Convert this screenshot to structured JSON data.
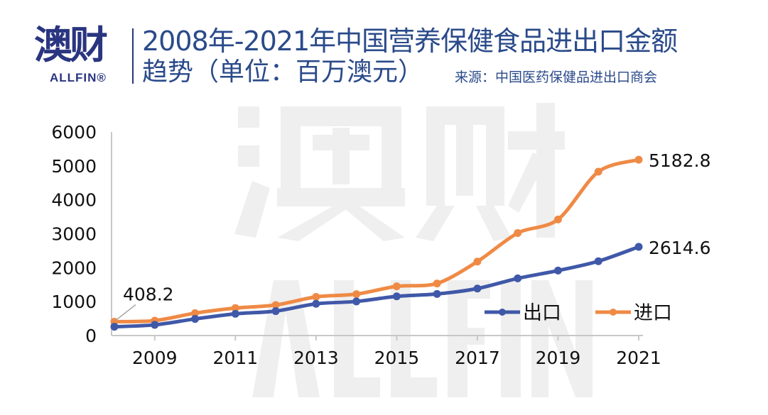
{
  "logo": {
    "cn": "澳财",
    "en": "ALLFIN®"
  },
  "title_line1": "2008年-2021年中国营养保健食品进出口金额",
  "title_line2": "趋势（单位：百万澳元）",
  "source": "来源：中国医药保健品进出口商会",
  "watermark": {
    "cn": "澳财",
    "en": "ALLFIN"
  },
  "chart_data": {
    "type": "line",
    "title": "2008年-2021年中国营养保健食品进出口金额趋势（单位：百万澳元）",
    "x": [
      2008,
      2009,
      2010,
      2011,
      2012,
      2013,
      2014,
      2015,
      2016,
      2017,
      2018,
      2019,
      2020,
      2021
    ],
    "x_tick_labels": [
      "2009",
      "2011",
      "2013",
      "2015",
      "2017",
      "2019",
      "2021"
    ],
    "y_tick_labels": [
      "0",
      "1000",
      "2000",
      "3000",
      "4000",
      "5000",
      "6000"
    ],
    "ylim": [
      0,
      6000
    ],
    "grid": false,
    "legend_position": "bottom-right",
    "series": [
      {
        "name": "出口",
        "color": "#4058a8",
        "values": [
          260,
          315,
          490,
          640,
          720,
          935,
          1005,
          1155,
          1225,
          1385,
          1685,
          1915,
          2190,
          2614.6
        ]
      },
      {
        "name": "进口",
        "color": "#ef8a45",
        "values": [
          408.2,
          440,
          660,
          810,
          900,
          1140,
          1220,
          1450,
          1535,
          2180,
          3020,
          3420,
          4830,
          5182.8
        ]
      }
    ],
    "annotations": [
      {
        "series": "进口",
        "x": 2008,
        "text": "408.2"
      },
      {
        "series": "进口",
        "x": 2021,
        "text": "5182.8"
      },
      {
        "series": "出口",
        "x": 2021,
        "text": "2614.6"
      }
    ]
  }
}
